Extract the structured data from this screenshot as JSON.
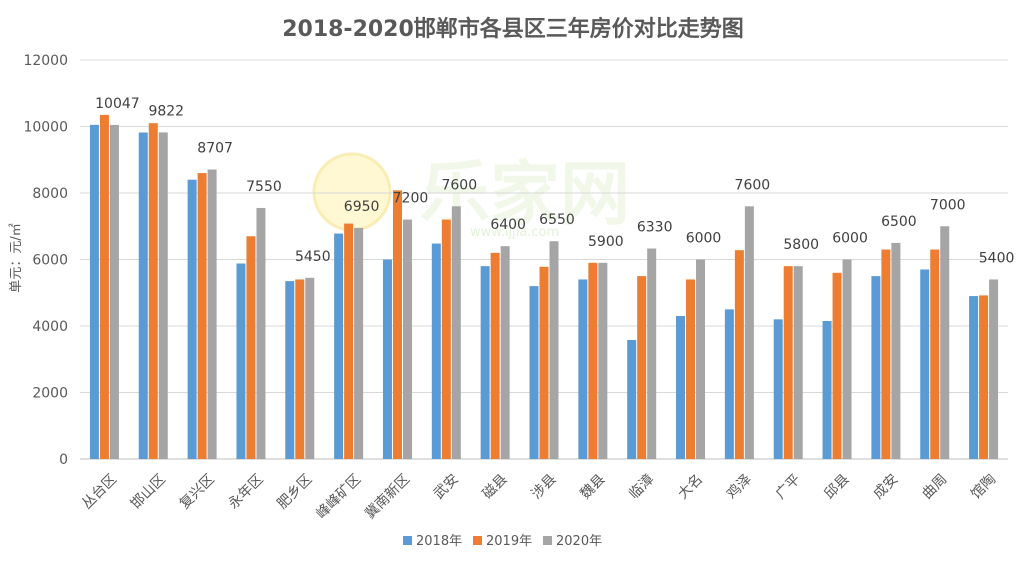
{
  "chart_data": {
    "type": "bar",
    "title": "2018-2020邯郸市各县区三年房价对比走势图",
    "ylabel": "单元：元/㎡",
    "xlabel": "",
    "ylim": [
      0,
      12000
    ],
    "yticks": [
      0,
      2000,
      4000,
      6000,
      8000,
      10000,
      12000
    ],
    "grid": true,
    "legend_position": "bottom",
    "categories": [
      "丛台区",
      "邯山区",
      "复兴区",
      "永年区",
      "肥乡区",
      "峰峰矿区",
      "冀南新区",
      "武安",
      "磁县",
      "涉县",
      "魏县",
      "临漳",
      "大名",
      "鸡泽",
      "广平",
      "邱县",
      "成安",
      "曲周",
      "馆陶"
    ],
    "series": [
      {
        "name": "2018年",
        "color": "#5b9bd5",
        "values": [
          10050,
          9820,
          8400,
          5880,
          5350,
          6780,
          6000,
          6480,
          5800,
          5200,
          5400,
          3580,
          4300,
          4500,
          4200,
          4150,
          5500,
          5700,
          4900
        ]
      },
      {
        "name": "2019年",
        "color": "#ed7d31",
        "values": [
          10350,
          10100,
          8600,
          6700,
          5400,
          7080,
          8080,
          7200,
          6200,
          5780,
          5900,
          5500,
          5400,
          6280,
          5800,
          5600,
          6300,
          6300,
          4920
        ]
      },
      {
        "name": "2020年",
        "color": "#a5a5a5",
        "values": [
          10047,
          9822,
          8707,
          7550,
          5450,
          6950,
          7200,
          7600,
          6400,
          6550,
          5900,
          6330,
          6000,
          7600,
          5800,
          6000,
          6500,
          7000,
          5400
        ]
      }
    ],
    "data_labels_series": "2020年",
    "data_labels": [
      "10047",
      "9822",
      "8707",
      "7550",
      "5450",
      "6950",
      "7200",
      "7600",
      "6400",
      "6550",
      "5900",
      "6330",
      "6000",
      "7600",
      "5800",
      "6000",
      "6500",
      "7000",
      "5400"
    ]
  },
  "watermark": {
    "brand": "乐家网",
    "url": "www.ljjia.com"
  }
}
